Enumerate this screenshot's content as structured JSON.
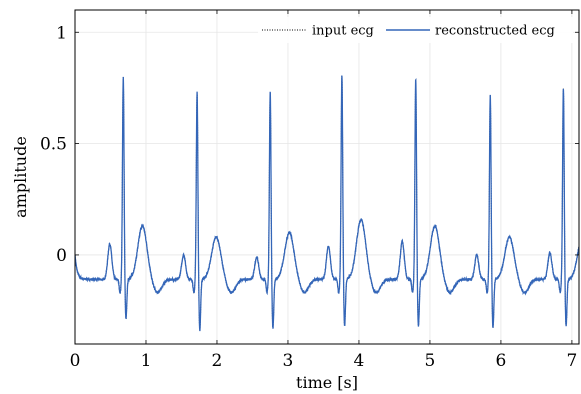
{
  "chart_data": {
    "type": "line",
    "xlabel": "time [s]",
    "ylabel": "amplitude",
    "xlim": [
      0,
      7.1
    ],
    "ylim": [
      -0.4,
      1.1
    ],
    "xticks": [
      0,
      1,
      2,
      3,
      4,
      5,
      6,
      7
    ],
    "xtick_labels": [
      "0",
      "1",
      "2",
      "3",
      "4",
      "5",
      "6",
      "7"
    ],
    "yticks": [
      0,
      0.5,
      1
    ],
    "ytick_labels": [
      "0",
      "0.5",
      "1"
    ],
    "grid": true,
    "legend_position": "top-right",
    "beats": [
      {
        "r_time": 0.68,
        "r_peak": 0.8,
        "t_peak": 0.13,
        "s_min": -0.29,
        "p_peak": 0.05
      },
      {
        "r_time": 1.72,
        "r_peak": 0.73,
        "t_peak": 0.08,
        "s_min": -0.34,
        "p_peak": 0.0
      },
      {
        "r_time": 2.75,
        "r_peak": 0.73,
        "t_peak": 0.1,
        "s_min": -0.33,
        "p_peak": -0.01
      },
      {
        "r_time": 3.76,
        "r_peak": 0.81,
        "t_peak": 0.16,
        "s_min": -0.32,
        "p_peak": 0.04
      },
      {
        "r_time": 4.8,
        "r_peak": 0.79,
        "t_peak": 0.13,
        "s_min": -0.32,
        "p_peak": 0.06
      },
      {
        "r_time": 5.85,
        "r_peak": 0.72,
        "t_peak": 0.08,
        "s_min": -0.33,
        "p_peak": 0.0
      },
      {
        "r_time": 6.88,
        "r_peak": 0.75,
        "t_peak": 0.09,
        "s_min": -0.32,
        "p_peak": 0.01
      }
    ],
    "series": [
      {
        "name": "input ecg",
        "color": "#000000",
        "style": "dotted"
      },
      {
        "name": "reconstructed ecg",
        "color": "#3466b8",
        "style": "solid"
      }
    ]
  }
}
